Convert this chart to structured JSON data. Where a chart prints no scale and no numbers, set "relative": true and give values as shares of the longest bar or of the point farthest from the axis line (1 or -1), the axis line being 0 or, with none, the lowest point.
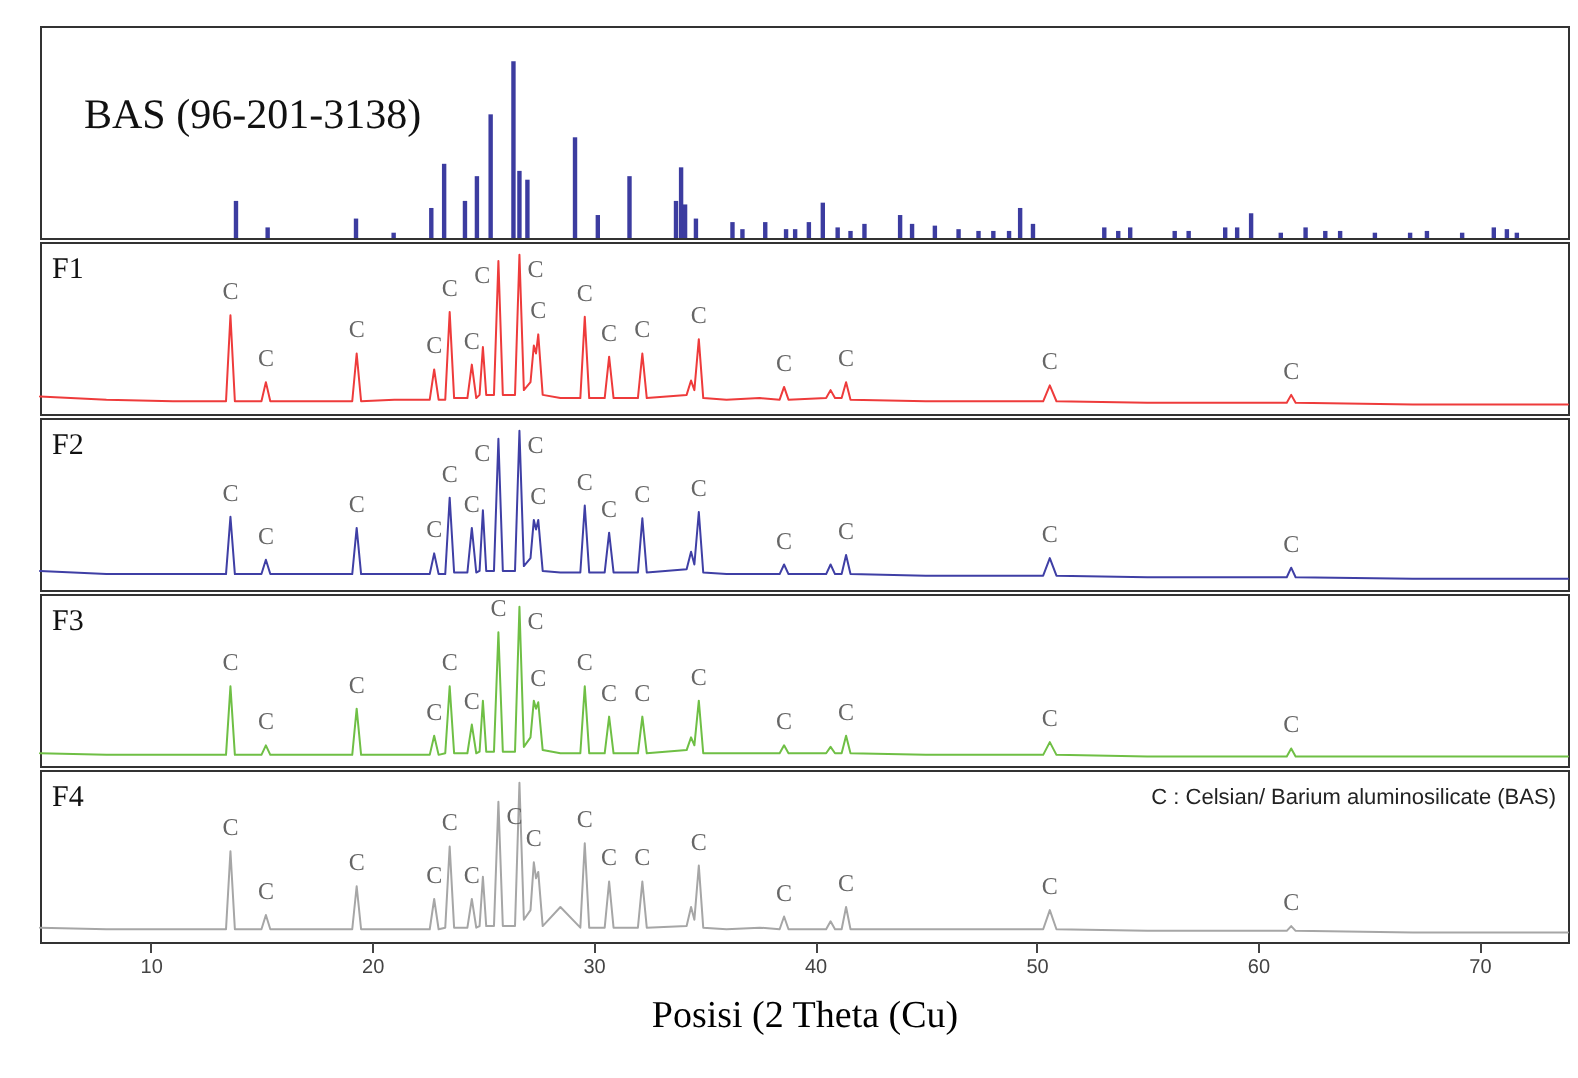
{
  "chart_data": [
    {
      "type": "bar",
      "title": "BAS (96-201-3138)",
      "relative": true,
      "xlim": [
        5,
        74
      ],
      "tick_labels": false,
      "color": "#3c3ca0",
      "x": [
        13.85,
        15.28,
        19.27,
        20.97,
        22.67,
        23.25,
        24.19,
        24.73,
        25.35,
        26.38,
        26.65,
        27.01,
        29.16,
        30.19,
        31.62,
        33.72,
        33.95,
        34.13,
        34.62,
        36.27,
        36.72,
        37.75,
        38.69,
        39.1,
        39.72,
        40.35,
        41.02,
        41.6,
        42.23,
        43.84,
        44.38,
        45.41,
        46.48,
        47.38,
        48.05,
        48.76,
        49.26,
        49.84,
        53.06,
        53.69,
        54.23,
        56.24,
        56.87,
        58.52,
        59.06,
        59.69,
        61.03,
        62.15,
        63.04,
        63.71,
        65.28,
        66.87,
        67.63,
        69.22,
        70.65,
        71.24,
        71.69
      ],
      "values": [
        0.21,
        0.06,
        0.11,
        0.03,
        0.17,
        0.42,
        0.21,
        0.35,
        0.7,
        1,
        0.38,
        0.33,
        0.57,
        0.13,
        0.35,
        0.21,
        0.4,
        0.19,
        0.11,
        0.09,
        0.05,
        0.09,
        0.05,
        0.05,
        0.09,
        0.2,
        0.06,
        0.04,
        0.08,
        0.13,
        0.08,
        0.07,
        0.05,
        0.04,
        0.04,
        0.04,
        0.17,
        0.08,
        0.06,
        0.04,
        0.06,
        0.04,
        0.04,
        0.06,
        0.06,
        0.14,
        0.03,
        0.06,
        0.04,
        0.04,
        0.03,
        0.03,
        0.04,
        0.03,
        0.06,
        0.05,
        0.03
      ]
    },
    {
      "type": "line",
      "title": "F1",
      "relative": true,
      "xlim": [
        5,
        74
      ],
      "tick_labels": false,
      "x": [
        5,
        8,
        11,
        13.4,
        13.6,
        13.8,
        15.0,
        15.2,
        15.4,
        17,
        19.1,
        19.3,
        19.5,
        21,
        22.6,
        22.8,
        23.0,
        23.3,
        23.5,
        23.7,
        24.3,
        24.5,
        24.7,
        24.85,
        25.0,
        25.15,
        25.5,
        25.7,
        25.9,
        26.45,
        26.65,
        26.85,
        27.15,
        27.3,
        27.4,
        27.5,
        27.7,
        28.5,
        29.4,
        29.6,
        29.8,
        30.5,
        30.7,
        30.9,
        32.0,
        32.2,
        32.4,
        34.2,
        34.4,
        34.55,
        34.75,
        34.95,
        36,
        37.5,
        38.4,
        38.6,
        38.8,
        40.5,
        40.7,
        40.9,
        41.2,
        41.4,
        41.6,
        45,
        50.3,
        50.6,
        50.9,
        55,
        61.3,
        61.5,
        61.7,
        67,
        74
      ],
      "series": [
        {
          "color": "#ee3b3b",
          "values": [
            0.11,
            0.09,
            0.08,
            0.08,
            0.62,
            0.08,
            0.08,
            0.2,
            0.08,
            0.08,
            0.08,
            0.38,
            0.08,
            0.09,
            0.09,
            0.28,
            0.09,
            0.09,
            0.64,
            0.1,
            0.1,
            0.31,
            0.1,
            0.12,
            0.42,
            0.12,
            0.12,
            0.96,
            0.12,
            0.12,
            1,
            0.15,
            0.2,
            0.43,
            0.38,
            0.5,
            0.12,
            0.1,
            0.1,
            0.61,
            0.1,
            0.1,
            0.36,
            0.1,
            0.1,
            0.38,
            0.1,
            0.12,
            0.21,
            0.15,
            0.47,
            0.1,
            0.09,
            0.1,
            0.09,
            0.17,
            0.09,
            0.1,
            0.15,
            0.1,
            0.1,
            0.2,
            0.09,
            0.08,
            0.08,
            0.18,
            0.08,
            0.07,
            0.07,
            0.12,
            0.07,
            0.06,
            0.06
          ]
        }
      ],
      "annotations": [
        {
          "text": "C",
          "x": 13.6,
          "y": 0.62
        },
        {
          "text": "C",
          "x": 15.2,
          "y": 0.2
        },
        {
          "text": "C",
          "x": 19.3,
          "y": 0.38
        },
        {
          "text": "C",
          "x": 22.8,
          "y": 0.28
        },
        {
          "text": "C",
          "x": 23.5,
          "y": 0.64
        },
        {
          "text": "C",
          "x": 24.5,
          "y": 0.31
        },
        {
          "text": "C",
          "x": 25.7,
          "y": 0.96
        },
        {
          "text": "C",
          "x": 26.65,
          "y": 1
        },
        {
          "text": "C",
          "x": 27.5,
          "y": 0.5
        },
        {
          "text": "C",
          "x": 29.6,
          "y": 0.61
        },
        {
          "text": "C",
          "x": 30.7,
          "y": 0.36
        },
        {
          "text": "C",
          "x": 32.2,
          "y": 0.38
        },
        {
          "text": "C",
          "x": 34.75,
          "y": 0.47
        },
        {
          "text": "C",
          "x": 38.6,
          "y": 0.17
        },
        {
          "text": "C",
          "x": 41.4,
          "y": 0.2
        },
        {
          "text": "C",
          "x": 50.6,
          "y": 0.18
        },
        {
          "text": "C",
          "x": 61.5,
          "y": 0.12
        }
      ]
    },
    {
      "type": "line",
      "title": "F2",
      "relative": true,
      "xlim": [
        5,
        74
      ],
      "tick_labels": false,
      "x": [
        5,
        8,
        11,
        13.4,
        13.6,
        13.8,
        15.0,
        15.2,
        15.4,
        17,
        19.1,
        19.3,
        19.5,
        21,
        22.6,
        22.8,
        23.0,
        23.3,
        23.5,
        23.7,
        24.3,
        24.5,
        24.7,
        24.85,
        25.0,
        25.15,
        25.5,
        25.7,
        25.9,
        26.45,
        26.65,
        26.85,
        27.15,
        27.3,
        27.4,
        27.5,
        27.7,
        28.5,
        29.4,
        29.6,
        29.8,
        30.5,
        30.7,
        30.9,
        32.0,
        32.2,
        32.4,
        34.2,
        34.4,
        34.55,
        34.75,
        34.95,
        36,
        37.5,
        38.4,
        38.6,
        38.8,
        40.5,
        40.7,
        40.9,
        41.2,
        41.4,
        41.6,
        45,
        50.3,
        50.6,
        50.9,
        55,
        61.3,
        61.5,
        61.7,
        67,
        74
      ],
      "series": [
        {
          "color": "#3f3fa5",
          "values": [
            0.12,
            0.1,
            0.1,
            0.1,
            0.46,
            0.1,
            0.1,
            0.19,
            0.1,
            0.1,
            0.1,
            0.39,
            0.1,
            0.1,
            0.1,
            0.23,
            0.1,
            0.1,
            0.58,
            0.11,
            0.11,
            0.39,
            0.11,
            0.12,
            0.5,
            0.12,
            0.12,
            0.95,
            0.12,
            0.12,
            1,
            0.15,
            0.2,
            0.44,
            0.38,
            0.44,
            0.12,
            0.11,
            0.11,
            0.53,
            0.11,
            0.11,
            0.36,
            0.11,
            0.11,
            0.45,
            0.11,
            0.13,
            0.24,
            0.16,
            0.49,
            0.11,
            0.1,
            0.1,
            0.1,
            0.16,
            0.1,
            0.1,
            0.16,
            0.1,
            0.1,
            0.22,
            0.1,
            0.09,
            0.09,
            0.2,
            0.09,
            0.08,
            0.08,
            0.14,
            0.08,
            0.07,
            0.07
          ]
        }
      ],
      "annotations": [
        {
          "text": "C",
          "x": 13.6,
          "y": 0.46
        },
        {
          "text": "C",
          "x": 15.2,
          "y": 0.19
        },
        {
          "text": "C",
          "x": 19.3,
          "y": 0.39
        },
        {
          "text": "C",
          "x": 22.8,
          "y": 0.23
        },
        {
          "text": "C",
          "x": 23.5,
          "y": 0.58
        },
        {
          "text": "C",
          "x": 24.5,
          "y": 0.39
        },
        {
          "text": "C",
          "x": 25.7,
          "y": 0.95
        },
        {
          "text": "C",
          "x": 26.65,
          "y": 1
        },
        {
          "text": "C",
          "x": 27.5,
          "y": 0.44
        },
        {
          "text": "C",
          "x": 29.6,
          "y": 0.53
        },
        {
          "text": "C",
          "x": 30.7,
          "y": 0.36
        },
        {
          "text": "C",
          "x": 32.2,
          "y": 0.45
        },
        {
          "text": "C",
          "x": 34.75,
          "y": 0.49
        },
        {
          "text": "C",
          "x": 38.6,
          "y": 0.16
        },
        {
          "text": "C",
          "x": 41.4,
          "y": 0.22
        },
        {
          "text": "C",
          "x": 50.6,
          "y": 0.2
        },
        {
          "text": "C",
          "x": 61.5,
          "y": 0.14
        }
      ]
    },
    {
      "type": "line",
      "title": "F3",
      "relative": true,
      "xlim": [
        5,
        74
      ],
      "tick_labels": false,
      "x": [
        5,
        8,
        11,
        13.4,
        13.6,
        13.8,
        15.0,
        15.2,
        15.4,
        17,
        19.1,
        19.3,
        19.5,
        21,
        22.6,
        22.8,
        23.0,
        23.3,
        23.5,
        23.7,
        24.3,
        24.5,
        24.7,
        24.85,
        25.0,
        25.15,
        25.5,
        25.7,
        25.9,
        26.45,
        26.65,
        26.85,
        27.15,
        27.3,
        27.4,
        27.5,
        27.7,
        28.5,
        29.4,
        29.6,
        29.8,
        30.5,
        30.7,
        30.9,
        32.0,
        32.2,
        32.4,
        34.2,
        34.4,
        34.55,
        34.75,
        34.95,
        36,
        37.5,
        38.4,
        38.6,
        38.8,
        40.5,
        40.7,
        40.9,
        41.2,
        41.4,
        41.6,
        45,
        50.3,
        50.6,
        50.9,
        55,
        61.3,
        61.5,
        61.7,
        67,
        74
      ],
      "series": [
        {
          "color": "#6fbf45",
          "values": [
            0.08,
            0.07,
            0.07,
            0.07,
            0.5,
            0.07,
            0.07,
            0.13,
            0.07,
            0.07,
            0.07,
            0.36,
            0.07,
            0.07,
            0.07,
            0.19,
            0.07,
            0.08,
            0.5,
            0.08,
            0.08,
            0.26,
            0.08,
            0.09,
            0.41,
            0.09,
            0.09,
            0.84,
            0.09,
            0.09,
            1,
            0.12,
            0.18,
            0.41,
            0.36,
            0.4,
            0.1,
            0.08,
            0.08,
            0.5,
            0.08,
            0.08,
            0.31,
            0.08,
            0.08,
            0.31,
            0.08,
            0.1,
            0.18,
            0.13,
            0.41,
            0.08,
            0.08,
            0.08,
            0.08,
            0.13,
            0.08,
            0.08,
            0.12,
            0.08,
            0.08,
            0.19,
            0.08,
            0.07,
            0.07,
            0.15,
            0.07,
            0.06,
            0.06,
            0.11,
            0.06,
            0.06,
            0.06
          ]
        }
      ],
      "annotations": [
        {
          "text": "C",
          "x": 13.6,
          "y": 0.5
        },
        {
          "text": "C",
          "x": 15.2,
          "y": 0.13
        },
        {
          "text": "C",
          "x": 19.3,
          "y": 0.36
        },
        {
          "text": "C",
          "x": 22.8,
          "y": 0.19
        },
        {
          "text": "C",
          "x": 23.5,
          "y": 0.5
        },
        {
          "text": "C",
          "x": 24.5,
          "y": 0.26
        },
        {
          "text": "C",
          "x": 25.7,
          "y": 0.84
        },
        {
          "text": "C",
          "x": 26.65,
          "y": 1
        },
        {
          "text": "C",
          "x": 27.5,
          "y": 0.4
        },
        {
          "text": "C",
          "x": 29.6,
          "y": 0.5
        },
        {
          "text": "C",
          "x": 30.7,
          "y": 0.31
        },
        {
          "text": "C",
          "x": 32.2,
          "y": 0.31
        },
        {
          "text": "C",
          "x": 34.75,
          "y": 0.41
        },
        {
          "text": "C",
          "x": 38.6,
          "y": 0.13
        },
        {
          "text": "C",
          "x": 41.4,
          "y": 0.19
        },
        {
          "text": "C",
          "x": 50.6,
          "y": 0.15
        },
        {
          "text": "C",
          "x": 61.5,
          "y": 0.11
        }
      ]
    },
    {
      "type": "line",
      "title": "F4",
      "relative": true,
      "xlim": [
        5,
        74
      ],
      "xticks": [
        10,
        20,
        30,
        40,
        50,
        60,
        70
      ],
      "tick_labels": "x",
      "xlabel": "Posisi (2 Theta (Cu)",
      "x": [
        5,
        8,
        11,
        13.4,
        13.6,
        13.8,
        15.0,
        15.2,
        15.4,
        17,
        19.1,
        19.3,
        19.5,
        21,
        22.6,
        22.8,
        23.0,
        23.3,
        23.5,
        23.7,
        24.3,
        24.5,
        24.7,
        24.85,
        25.0,
        25.15,
        25.5,
        25.7,
        25.9,
        26.45,
        26.65,
        26.85,
        27.15,
        27.3,
        27.4,
        27.5,
        27.7,
        28.5,
        29.4,
        29.6,
        29.8,
        30.5,
        30.7,
        30.9,
        32.0,
        32.2,
        32.4,
        34.2,
        34.4,
        34.55,
        34.75,
        34.95,
        36,
        37.5,
        38.4,
        38.6,
        38.8,
        40.5,
        40.7,
        40.9,
        41.2,
        41.4,
        41.6,
        45,
        50.3,
        50.6,
        50.9,
        55,
        61.3,
        61.5,
        61.7,
        67,
        74
      ],
      "series": [
        {
          "color": "#a6a6a6",
          "values": [
            0.09,
            0.08,
            0.08,
            0.08,
            0.57,
            0.08,
            0.08,
            0.17,
            0.08,
            0.08,
            0.08,
            0.35,
            0.08,
            0.08,
            0.08,
            0.27,
            0.08,
            0.09,
            0.6,
            0.09,
            0.09,
            0.27,
            0.09,
            0.1,
            0.41,
            0.1,
            0.1,
            0.88,
            0.1,
            0.1,
            1,
            0.14,
            0.2,
            0.5,
            0.4,
            0.44,
            0.1,
            0.22,
            0.09,
            0.62,
            0.09,
            0.09,
            0.38,
            0.09,
            0.09,
            0.38,
            0.09,
            0.1,
            0.22,
            0.14,
            0.48,
            0.09,
            0.08,
            0.09,
            0.08,
            0.16,
            0.08,
            0.08,
            0.13,
            0.08,
            0.08,
            0.22,
            0.08,
            0.08,
            0.08,
            0.2,
            0.08,
            0.07,
            0.07,
            0.1,
            0.07,
            0.06,
            0.06
          ]
        }
      ],
      "annotations": [
        "C : Celsian/ Barium aluminosilicate (BAS)",
        {
          "text": "C",
          "x": 13.6,
          "y": 0.57
        },
        {
          "text": "C",
          "x": 15.2,
          "y": 0.17
        },
        {
          "text": "C",
          "x": 19.3,
          "y": 0.35
        },
        {
          "text": "C",
          "x": 22.8,
          "y": 0.27
        },
        {
          "text": "C",
          "x": 23.5,
          "y": 0.6
        },
        {
          "text": "C",
          "x": 24.5,
          "y": 0.27
        },
        {
          "text": "C",
          "x": 25.7,
          "y": 0.88
        },
        {
          "text": "C",
          "x": 27.3,
          "y": 0.5
        },
        {
          "text": "C",
          "x": 29.6,
          "y": 0.62
        },
        {
          "text": "C",
          "x": 30.7,
          "y": 0.38
        },
        {
          "text": "C",
          "x": 32.2,
          "y": 0.38
        },
        {
          "text": "C",
          "x": 34.75,
          "y": 0.48
        },
        {
          "text": "C",
          "x": 38.6,
          "y": 0.16
        },
        {
          "text": "C",
          "x": 41.4,
          "y": 0.22
        },
        {
          "text": "C",
          "x": 50.6,
          "y": 0.2
        },
        {
          "text": "C",
          "x": 61.5,
          "y": 0.1
        }
      ]
    }
  ]
}
